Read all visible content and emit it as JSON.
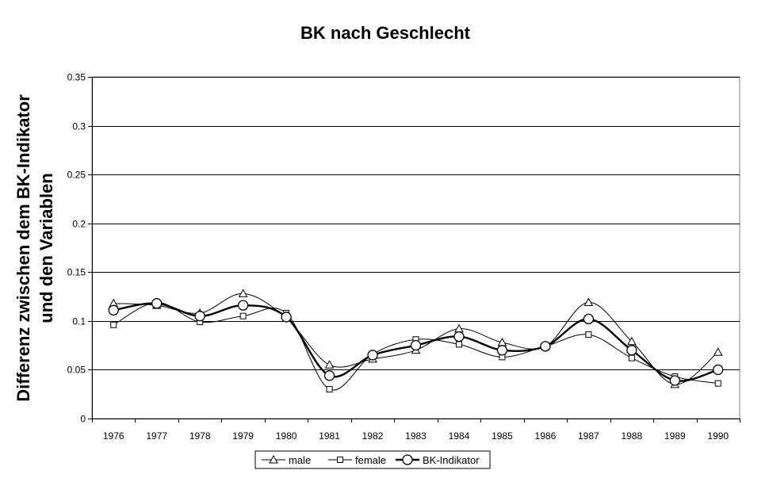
{
  "chart_data": {
    "type": "line",
    "title": "BK nach Geschlecht",
    "ylabel_line1": "Differenz zwischen dem BK-Indikator",
    "ylabel_line2": "und den Variablen",
    "xlabel": "",
    "categories": [
      "1976",
      "1977",
      "1978",
      "1979",
      "1980",
      "1981",
      "1982",
      "1983",
      "1984",
      "1985",
      "1986",
      "1987",
      "1988",
      "1989",
      "1990"
    ],
    "ylim": [
      0,
      0.35
    ],
    "yticks": [
      0,
      0.05,
      0.1,
      0.15,
      0.2,
      0.25,
      0.3,
      0.35
    ],
    "ytick_labels": [
      "0",
      "0.05",
      "0.1",
      "0.15",
      "0.2",
      "0.25",
      "0.3",
      "0.35"
    ],
    "grid": true,
    "legend_position": "bottom",
    "series": [
      {
        "name": "male",
        "marker": "triangle",
        "values": [
          0.118,
          0.116,
          0.108,
          0.128,
          0.103,
          0.055,
          0.061,
          0.07,
          0.092,
          0.078,
          0.074,
          0.119,
          0.079,
          0.035,
          0.068
        ]
      },
      {
        "name": "female",
        "marker": "square",
        "values": [
          0.096,
          0.119,
          0.099,
          0.105,
          0.108,
          0.03,
          0.066,
          0.081,
          0.076,
          0.063,
          0.074,
          0.086,
          0.062,
          0.043,
          0.036
        ]
      },
      {
        "name": "BK-Indikator",
        "marker": "circle",
        "values": [
          0.111,
          0.118,
          0.105,
          0.116,
          0.104,
          0.044,
          0.065,
          0.075,
          0.084,
          0.07,
          0.074,
          0.102,
          0.07,
          0.039,
          0.05
        ]
      }
    ]
  }
}
